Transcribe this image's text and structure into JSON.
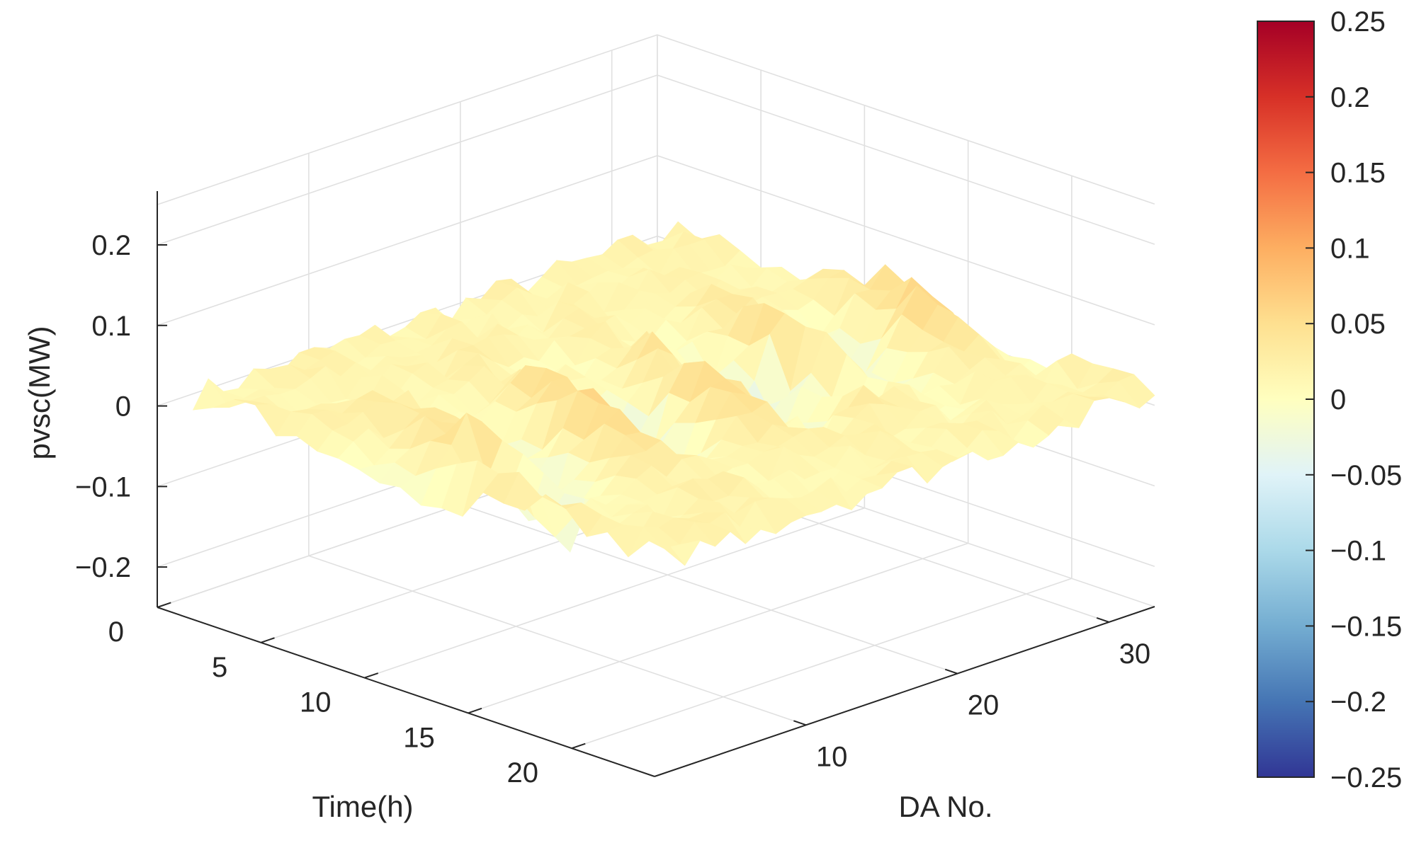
{
  "chart_data": {
    "type": "surface",
    "xlabel": "Time(h)",
    "ylabel": "DA No.",
    "zlabel": "pvsc(MW)",
    "xlim": [
      0,
      24
    ],
    "ylim": [
      0,
      33
    ],
    "zlim": [
      -0.25,
      0.25
    ],
    "x_ticks": [
      "0",
      "5",
      "10",
      "15",
      "20"
    ],
    "y_ticks": [
      "10",
      "20",
      "30"
    ],
    "z_ticks": [
      "0.2",
      "0.1",
      "0",
      "−0.1",
      "−0.2"
    ],
    "colorbar": {
      "ticks": [
        "0.25",
        "0.2",
        "0.15",
        "0.1",
        "0.05",
        "0",
        "−0.05",
        "−0.1",
        "−0.15",
        "−0.2",
        "−0.25"
      ],
      "range": [
        -0.25,
        0.25
      ],
      "colormap": [
        "#313695",
        "#4575b4",
        "#74add1",
        "#abd9e9",
        "#e0f3f8",
        "#ffffbf",
        "#fee090",
        "#fdae61",
        "#f46d43",
        "#d73027",
        "#a50026"
      ]
    },
    "grid": true,
    "surface_range_approx": [
      -0.1,
      0.08
    ]
  },
  "colors": {
    "axis": "#262626",
    "grid": "#e0e0e0"
  }
}
